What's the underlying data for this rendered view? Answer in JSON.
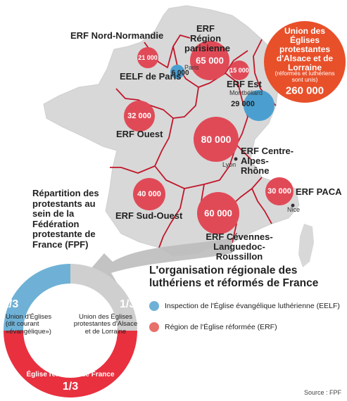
{
  "map": {
    "regions": {
      "nord_normandie": "ERF Nord-Normandie",
      "paris_region": "ERF Région parisienne",
      "eelf_paris": "EELF de Paris",
      "est": "ERF Est",
      "ouest": "ERF Ouest",
      "centre_alpes_rhone": "ERF Centre- Alpes-Rhône",
      "sud_ouest": "ERF Sud-Ouest",
      "paca": "ERF PACA",
      "cevennes": "ERF Cévennes- Languedoc- Roussillon",
      "alsace_lorraine": "Union des Églises protestantes d'Alsace et de Lorraine",
      "alsace_note": "(réformés et luthériens sont unis)"
    },
    "cities": {
      "paris": "Paris",
      "montbeliard": "Montbéliard",
      "lyon": "Lyon",
      "nice": "Nice"
    },
    "values": {
      "nord_normandie": "21 000",
      "paris_region": "65 000",
      "eelf_paris": "6 000",
      "est": "15 000",
      "montbeliard": "29 000",
      "ouest": "32 000",
      "centre": "80 000",
      "sud_ouest": "40 000",
      "paca": "30 000",
      "cevennes": "60 000",
      "alsace_lorraine": "260 000"
    }
  },
  "caption": "Répartition des protestants au sein de la Fédération protestante de France (FPF)",
  "donut": {
    "eelf_fraction": "1/3",
    "eelf_label": "Union d'Églises (dit courant «évangélique»)",
    "uepal_fraction": "1/3",
    "uepal_label": "Union des Églises protestantes d'Alsace et de Lorraine",
    "erf_label": "Église réformée de France",
    "erf_fraction": "1/3"
  },
  "legend": {
    "title": "L'organisation régionale des luthériens et réformés de France",
    "items": [
      {
        "label": "Inspection de l'Église évangélique luthérienne (EELF)",
        "color": "#6fb1d6"
      },
      {
        "label": "Région de l'Église réformée (ERF)",
        "color": "#e8706a"
      }
    ]
  },
  "source": "Source : FPF",
  "colors": {
    "map_fill": "#d9d9d9",
    "border": "#c0172a",
    "erf_bubble": "#e04a57",
    "eelf_bubble": "#4a9fd0",
    "uepal": "#e8502a"
  }
}
